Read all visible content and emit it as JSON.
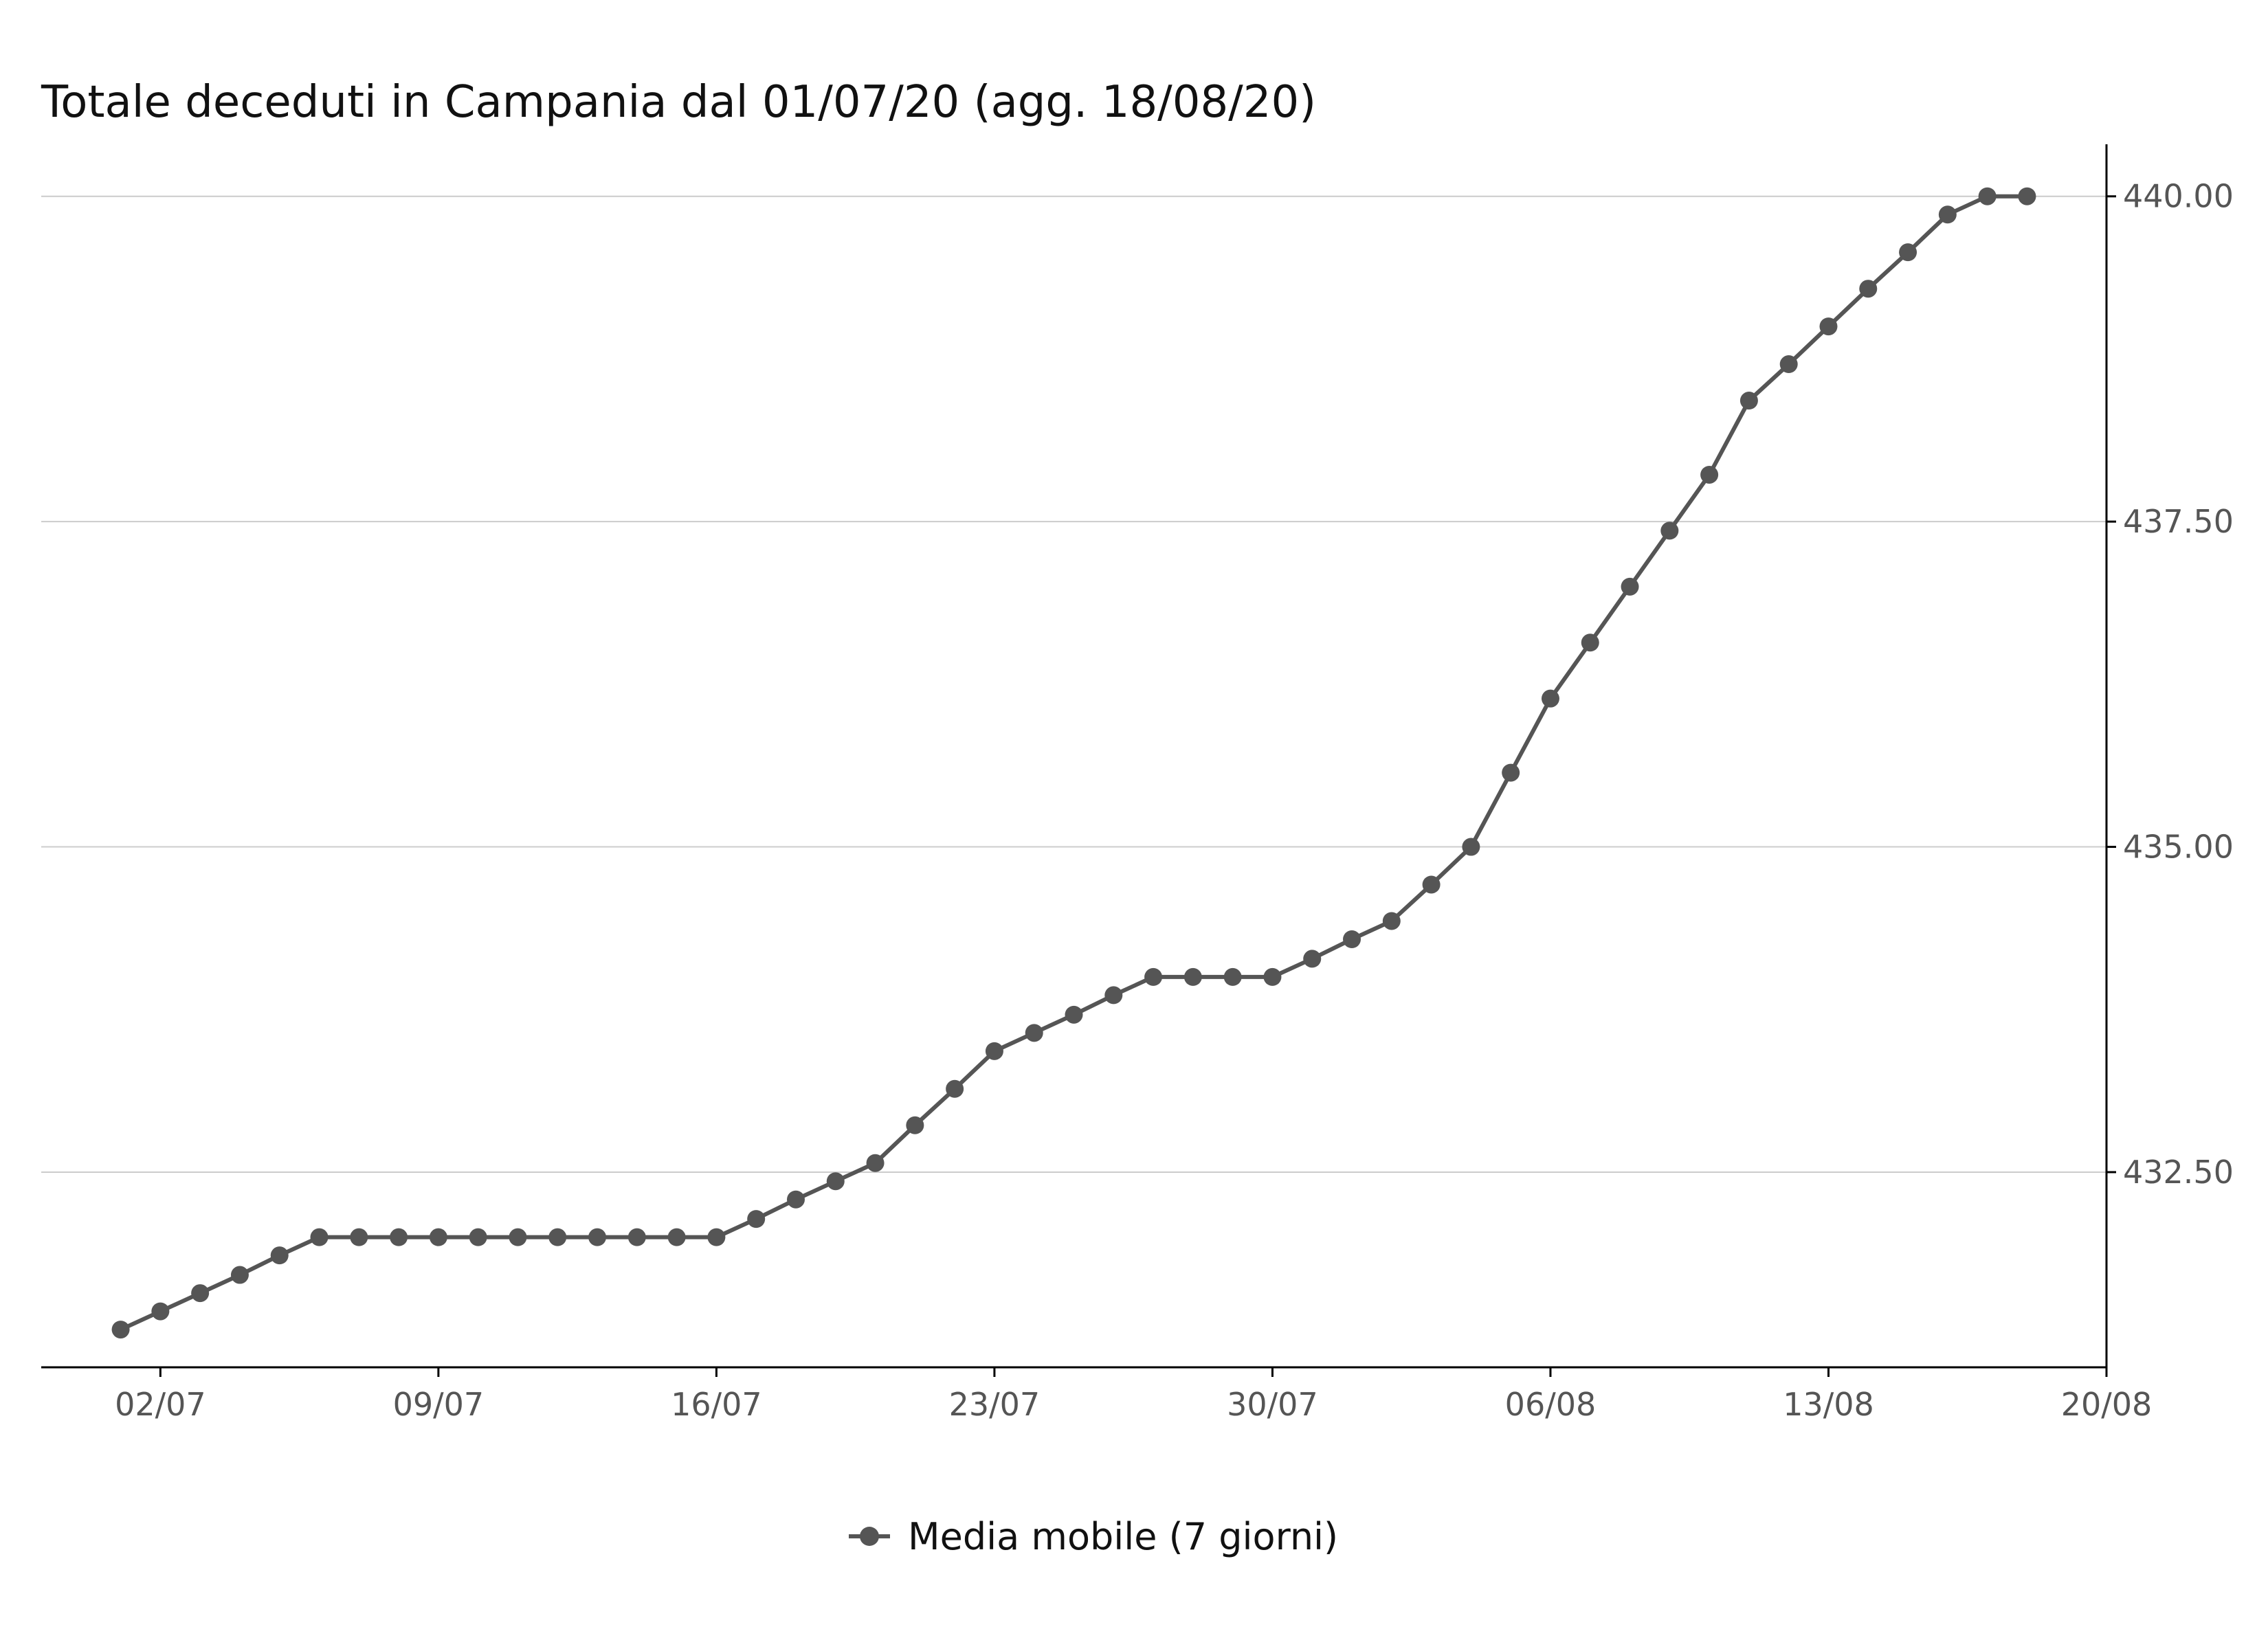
{
  "chart_data": {
    "type": "line",
    "title": "Totale deceduti in Campania dal 01/07/20 (agg. 18/08/20)",
    "xlabel": "",
    "ylabel": "",
    "x_ticks": [
      "02/07",
      "09/07",
      "16/07",
      "23/07",
      "30/07",
      "06/08",
      "13/08",
      "20/08"
    ],
    "y_ticks": [
      "432.50",
      "435.00",
      "437.50",
      "440.00"
    ],
    "ylim": [
      431.0,
      440.4
    ],
    "xlim": [
      "2020-06-29",
      "2020-08-20"
    ],
    "grid": "horizontal",
    "y_axis_position": "right",
    "legend": "bottom",
    "colors": {
      "line": "#555555",
      "grid": "#cccccc",
      "axis": "#000000"
    },
    "series": [
      {
        "name": "Media mobile (7 giorni)",
        "x": [
          "2020-07-01",
          "2020-07-02",
          "2020-07-03",
          "2020-07-04",
          "2020-07-05",
          "2020-07-06",
          "2020-07-07",
          "2020-07-08",
          "2020-07-09",
          "2020-07-10",
          "2020-07-11",
          "2020-07-12",
          "2020-07-13",
          "2020-07-14",
          "2020-07-15",
          "2020-07-16",
          "2020-07-17",
          "2020-07-18",
          "2020-07-19",
          "2020-07-20",
          "2020-07-21",
          "2020-07-22",
          "2020-07-23",
          "2020-07-24",
          "2020-07-25",
          "2020-07-26",
          "2020-07-27",
          "2020-07-28",
          "2020-07-29",
          "2020-07-30",
          "2020-07-31",
          "2020-08-01",
          "2020-08-02",
          "2020-08-03",
          "2020-08-04",
          "2020-08-05",
          "2020-08-06",
          "2020-08-07",
          "2020-08-08",
          "2020-08-09",
          "2020-08-10",
          "2020-08-11",
          "2020-08-12",
          "2020-08-13",
          "2020-08-14",
          "2020-08-15",
          "2020-08-16",
          "2020-08-17",
          "2020-08-18"
        ],
        "values": [
          431.29,
          431.43,
          431.57,
          431.71,
          431.86,
          432.0,
          432.0,
          432.0,
          432.0,
          432.0,
          432.0,
          432.0,
          432.0,
          432.0,
          432.0,
          432.0,
          432.14,
          432.29,
          432.43,
          432.57,
          432.86,
          433.14,
          433.43,
          433.57,
          433.71,
          433.86,
          434.0,
          434.0,
          434.0,
          434.0,
          434.14,
          434.29,
          434.43,
          434.71,
          435.0,
          435.57,
          436.14,
          436.57,
          437.0,
          437.43,
          437.86,
          438.43,
          438.71,
          439.0,
          439.29,
          439.57,
          439.86,
          440.0,
          440.0
        ]
      }
    ]
  }
}
